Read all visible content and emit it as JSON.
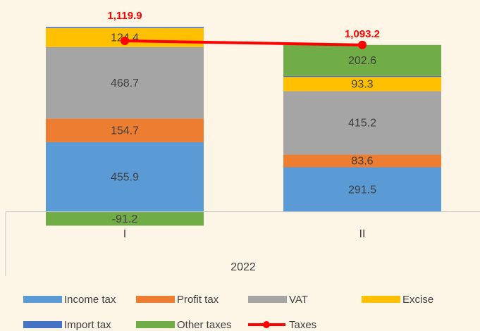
{
  "chart_data": {
    "type": "stacked_bar_line",
    "categories": [
      "I",
      "II"
    ],
    "group_label": "2022",
    "series": [
      {
        "name": "Income tax",
        "color": "#5b9bd5",
        "values": [
          455.9,
          291.5
        ]
      },
      {
        "name": "Profit tax",
        "color": "#ed7d31",
        "values": [
          154.7,
          83.6
        ]
      },
      {
        "name": "VAT",
        "color": "#a5a5a5",
        "values": [
          468.7,
          415.2
        ]
      },
      {
        "name": "Excise",
        "color": "#ffc000",
        "values": [
          124.4,
          93.3
        ]
      },
      {
        "name": "Import tax",
        "color": "#4472c4",
        "values": [
          7.4,
          7.0
        ]
      },
      {
        "name": "Other taxes",
        "color": "#70ad47",
        "values": [
          -91.2,
          202.6
        ]
      }
    ],
    "line": {
      "name": "Taxes",
      "color": "#ff0000",
      "values": [
        1119.9,
        1093.2
      ],
      "value_labels": [
        "1,119.9",
        "1,093.2"
      ]
    },
    "ylim": [
      -200,
      1300
    ]
  }
}
